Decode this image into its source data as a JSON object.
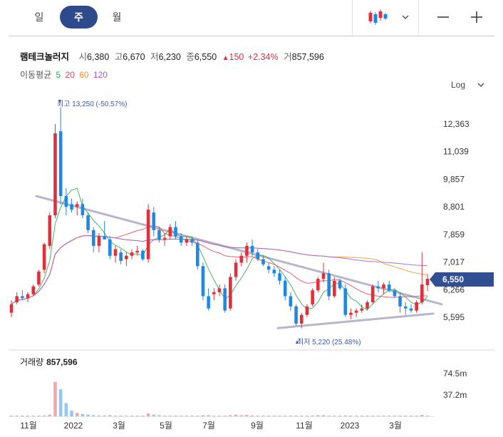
{
  "tabs": [
    {
      "label": "일",
      "active": false
    },
    {
      "label": "주",
      "active": true
    },
    {
      "label": "월",
      "active": false
    }
  ],
  "toolbar": {
    "chart_type_icon": "candlestick-icon",
    "dropdown_icon": "chevron-down-icon",
    "zoom_out_icon": "minus-icon",
    "zoom_in_icon": "plus-icon"
  },
  "header": {
    "name": "램테크놀러지",
    "open_label": "시",
    "open_value": "6,380",
    "high_label": "고",
    "high_value": "6,670",
    "low_label": "저",
    "low_value": "6,230",
    "close_label": "종",
    "close_value": "6,550",
    "change_value": "150",
    "change_pct": "+2.34%",
    "volume_label": "거",
    "volume_value": "857,596"
  },
  "ma_legend": {
    "label": "이동평균",
    "periods": [
      {
        "value": "5",
        "color": "#27a844"
      },
      {
        "value": "20",
        "color": "#e8454f"
      },
      {
        "value": "60",
        "color": "#f0902a"
      },
      {
        "value": "120",
        "color": "#9b59e0"
      }
    ]
  },
  "scale_button": {
    "label": "Log"
  },
  "price_axis": {
    "ticks": [
      "12,363",
      "11,039",
      "9,857",
      "8,801",
      "7,859",
      "7,017",
      "6,266",
      "5,595"
    ]
  },
  "current_price_tag": "6,550",
  "annotations": {
    "high": "최고 13,250 (-50.57%)",
    "low": "최저 5,220 (25.48%)"
  },
  "volume": {
    "label": "거래량",
    "value": "857,596",
    "ticks": [
      "74.5m",
      "37.2m"
    ]
  },
  "x_axis": {
    "ticks": [
      "11월",
      "2022",
      "3월",
      "5월",
      "7월",
      "9월",
      "11월",
      "2023",
      "3월"
    ]
  },
  "colors": {
    "up": "#e0303b",
    "down": "#1e88e5",
    "trendline": "#b8b6cc"
  },
  "chart_data": {
    "type": "candlestick",
    "scale": "log",
    "period": "weekly",
    "y_ticks": [
      12363,
      11039,
      9857,
      8801,
      7859,
      7017,
      6266,
      5595
    ],
    "ohlc": [
      [
        5700,
        6000,
        5600,
        5900
      ],
      [
        5950,
        6200,
        5900,
        6100
      ],
      [
        6100,
        6250,
        6000,
        6050
      ],
      [
        6050,
        6200,
        5950,
        6150
      ],
      [
        6150,
        6400,
        6100,
        6350
      ],
      [
        6400,
        6800,
        6350,
        6750
      ],
      [
        6800,
        7600,
        6700,
        7550
      ],
      [
        7500,
        8600,
        7400,
        8500
      ],
      [
        8500,
        12363,
        8400,
        11900
      ],
      [
        12000,
        13250,
        8900,
        9200
      ],
      [
        9200,
        9500,
        8500,
        8800
      ],
      [
        8900,
        9100,
        8600,
        8700
      ],
      [
        8800,
        9000,
        8500,
        8900
      ],
      [
        8900,
        9100,
        8400,
        8500
      ],
      [
        8500,
        8600,
        7900,
        8000
      ],
      [
        8000,
        8100,
        7300,
        7500
      ],
      [
        7500,
        7900,
        7300,
        7800
      ],
      [
        7800,
        8300,
        7700,
        7700
      ],
      [
        7700,
        7800,
        7100,
        7200
      ],
      [
        7200,
        7500,
        7000,
        7400
      ],
      [
        7300,
        7400,
        6950,
        7050
      ],
      [
        7100,
        7300,
        6900,
        7200
      ],
      [
        7200,
        7400,
        7100,
        7300
      ],
      [
        7300,
        7500,
        7200,
        7350
      ],
      [
        7350,
        7400,
        7050,
        7100
      ],
      [
        7100,
        8900,
        7000,
        8700
      ],
      [
        8600,
        8800,
        7800,
        8000
      ],
      [
        8000,
        8100,
        7600,
        7700
      ],
      [
        7700,
        7900,
        7500,
        7750
      ],
      [
        7800,
        8200,
        7700,
        8100
      ],
      [
        8100,
        8300,
        7700,
        7800
      ],
      [
        7800,
        7900,
        7500,
        7600
      ],
      [
        7600,
        7800,
        7500,
        7700
      ],
      [
        7700,
        7800,
        7500,
        7600
      ],
      [
        7600,
        7700,
        6800,
        6900
      ],
      [
        6900,
        7000,
        6000,
        6100
      ],
      [
        6100,
        6300,
        5750,
        5800
      ],
      [
        6150,
        6300,
        6000,
        6200
      ],
      [
        6200,
        6400,
        6100,
        6300
      ],
      [
        6300,
        6400,
        5700,
        5750
      ],
      [
        5800,
        6700,
        5750,
        6600
      ],
      [
        6600,
        7100,
        6500,
        7000
      ],
      [
        7000,
        7300,
        6900,
        7200
      ],
      [
        7200,
        7600,
        7000,
        7500
      ],
      [
        7500,
        7700,
        7200,
        7300
      ],
      [
        7300,
        7400,
        7050,
        7100
      ],
      [
        7100,
        7200,
        6900,
        6950
      ],
      [
        6900,
        7000,
        6700,
        6800
      ],
      [
        6800,
        6900,
        6600,
        6700
      ],
      [
        6700,
        6800,
        6400,
        6500
      ],
      [
        6500,
        6600,
        6000,
        6100
      ],
      [
        6100,
        6200,
        5750,
        5850
      ],
      [
        5850,
        5900,
        5400,
        5450
      ],
      [
        5450,
        5700,
        5350,
        5650
      ],
      [
        5650,
        5900,
        5600,
        5850
      ],
      [
        5900,
        6300,
        5850,
        6250
      ],
      [
        6250,
        6600,
        6200,
        6550
      ],
      [
        6550,
        7000,
        6450,
        6700
      ],
      [
        6700,
        6800,
        6000,
        6100
      ],
      [
        6100,
        6600,
        6050,
        6500
      ],
      [
        6500,
        6550,
        6250,
        6300
      ],
      [
        6300,
        6400,
        5600,
        5650
      ],
      [
        5650,
        5800,
        5550,
        5700
      ],
      [
        5700,
        5800,
        5600,
        5750
      ],
      [
        5750,
        5900,
        5700,
        5800
      ],
      [
        5800,
        6000,
        5750,
        5950
      ],
      [
        5950,
        6400,
        5900,
        6350
      ],
      [
        6350,
        6500,
        6200,
        6300
      ],
      [
        6300,
        6450,
        6150,
        6400
      ],
      [
        6400,
        6500,
        6200,
        6250
      ],
      [
        6250,
        6300,
        6050,
        6100
      ],
      [
        6100,
        6200,
        5700,
        5850
      ],
      [
        5850,
        5950,
        5650,
        5800
      ],
      [
        5800,
        5900,
        5700,
        5750
      ],
      [
        5750,
        6000,
        5700,
        5950
      ],
      [
        5950,
        7300,
        5900,
        6400
      ],
      [
        6380,
        6670,
        6230,
        6550
      ]
    ],
    "volume_millions": [
      0.5,
      0.4,
      0.4,
      0.3,
      0.5,
      0.8,
      1.5,
      3.0,
      60,
      47,
      23,
      10,
      6,
      4,
      3,
      2,
      1.5,
      1.5,
      2,
      1,
      0.8,
      0.8,
      0.6,
      0.6,
      0.5,
      5,
      3,
      2,
      1,
      1,
      0.8,
      0.6,
      0.8,
      0.5,
      0.8,
      2,
      2,
      0.8,
      0.6,
      1,
      2,
      3,
      2,
      2.5,
      1.5,
      1,
      0.8,
      0.6,
      0.6,
      0.6,
      1,
      1,
      1.5,
      1,
      1,
      1.5,
      2,
      2,
      1,
      1,
      0.8,
      1.5,
      0.8,
      0.6,
      0.6,
      0.6,
      1,
      0.8,
      0.8,
      0.6,
      0.6,
      0.8,
      0.6,
      0.5,
      0.6,
      2.5,
      0.86
    ],
    "volume_axis_ticks": [
      74.5,
      37.2
    ],
    "x_tick_labels": [
      "11월",
      "2022",
      "3월",
      "5월",
      "7월",
      "9월",
      "11월",
      "2023",
      "3월"
    ],
    "all_time_high": 13250,
    "all_time_low": 5220,
    "last_close": 6550,
    "moving_averages": [
      5,
      20,
      60,
      120
    ]
  }
}
